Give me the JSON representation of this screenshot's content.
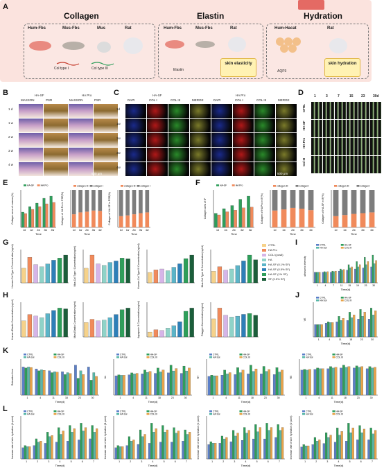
{
  "panel_letters": [
    "A",
    "B",
    "C",
    "D",
    "E",
    "F",
    "G",
    "H",
    "I",
    "J",
    "K",
    "L"
  ],
  "panelA": {
    "collagen": {
      "title": "Collagen",
      "items": [
        "Hum-Fbs",
        "Mus-Fbs",
        "Mus",
        "Rat"
      ],
      "outputs": [
        "Col type I",
        "Col type III"
      ]
    },
    "elastin": {
      "title": "Elastin",
      "items": [
        "Hum-Fbs",
        "Mus-Fbs",
        "Rat"
      ],
      "outputs": [
        "Elastin",
        "skin elasticity"
      ]
    },
    "hydration": {
      "title": "Hydration",
      "items": [
        "Hum-Hacat",
        "Rat"
      ],
      "outputs": [
        "AQP3",
        "skin hydration"
      ]
    }
  },
  "panelB": {
    "groups": [
      "HA-SF",
      "HA Pro"
    ],
    "stains": [
      "MASSON",
      "PSR"
    ],
    "rows": [
      "1 d",
      "1 w",
      "2 w",
      "3 w",
      "4 w"
    ],
    "scale": "500 μm"
  },
  "panelC": {
    "groups": [
      "HA-SF",
      "HA Pro"
    ],
    "channels": [
      "DAPI",
      "COL I",
      "COL III",
      "MERGE"
    ],
    "rows": [
      "1d",
      "1w",
      "2w",
      "3w",
      "4w"
    ],
    "scale": "500 μm"
  },
  "panelD": {
    "columns": [
      "1",
      "3",
      "7",
      "15",
      "23",
      "30d"
    ],
    "rows": [
      "CTRL",
      "HA-SF",
      "HA Pro",
      "Col III"
    ]
  },
  "legends": {
    "two": [
      "HA-SF",
      "HA Pro"
    ],
    "collagen_ratio": [
      "collagen III",
      "collagen I"
    ],
    "groups8": [
      "CTRL",
      "HA Pro",
      "COL I(pos8)",
      "HA",
      "HA-SF (0.1% SF)",
      "HA-SF (0.5% SF)",
      "HA-SF (1% SF)",
      "SF (0.5% SF)"
    ],
    "groups4": [
      "CTRL",
      "HA-SF",
      "HA Sol",
      "COL III"
    ]
  },
  "chart_data": [
    {
      "panel": "E1",
      "type": "bar",
      "ylabel": "Collagen area of masson(%)",
      "xlabel": "Time",
      "categories": [
        "1d",
        "1w",
        "2w",
        "3w",
        "4w"
      ],
      "series": [
        {
          "name": "HA-SF",
          "values": [
            22,
            30,
            35,
            42,
            45
          ]
        },
        {
          "name": "HA Pro",
          "values": [
            20,
            26,
            30,
            34,
            36
          ]
        }
      ]
    },
    {
      "panel": "E2",
      "type": "bar",
      "ylabel": "Collagen of HA Pro in PSR(%)",
      "xlabel": "Time",
      "categories": [
        "1d",
        "1w",
        "2w",
        "3w",
        "4w"
      ],
      "series": [
        {
          "name": "collagen III",
          "values": [
            35,
            40,
            42,
            45,
            44
          ]
        },
        {
          "name": "collagen I",
          "values": [
            65,
            60,
            58,
            55,
            56
          ]
        }
      ]
    },
    {
      "panel": "E3",
      "type": "bar",
      "ylabel": "Collagen of HA-SF in PSR(%)",
      "xlabel": "Time",
      "categories": [
        "1d",
        "1w",
        "2w",
        "3w",
        "4w"
      ],
      "series": [
        {
          "name": "collagen III",
          "values": [
            30,
            32,
            35,
            38,
            40
          ]
        },
        {
          "name": "collagen I",
          "values": [
            70,
            68,
            65,
            62,
            60
          ]
        }
      ]
    },
    {
      "panel": "F1",
      "type": "bar",
      "ylabel": "Collagen area of IF",
      "xlabel": "Time",
      "categories": [
        "1d",
        "1w",
        "2w",
        "3w",
        "4w"
      ],
      "series": [
        {
          "name": "HA-SF",
          "values": [
            18,
            24,
            28,
            36,
            40
          ]
        },
        {
          "name": "HA Pro",
          "values": [
            16,
            20,
            22,
            25,
            26
          ]
        }
      ]
    },
    {
      "panel": "F2",
      "type": "bar",
      "ylabel": "Collagen of HA Pro in IF(%)",
      "xlabel": "Time",
      "categories": [
        "1d",
        "1w",
        "2w",
        "3w",
        "4w"
      ],
      "series": [
        {
          "name": "collagen III",
          "values": [
            45,
            48,
            52,
            50,
            46
          ]
        },
        {
          "name": "collagen I",
          "values": [
            55,
            52,
            48,
            50,
            54
          ]
        }
      ]
    },
    {
      "panel": "F3",
      "type": "bar",
      "ylabel": "Collagen of HA-SF in IF(%)",
      "xlabel": "Time",
      "categories": [
        "1d",
        "1w",
        "2w",
        "3w",
        "4w"
      ],
      "series": [
        {
          "name": "collagen III",
          "values": [
            30,
            33,
            36,
            38,
            40
          ]
        },
        {
          "name": "collagen I",
          "values": [
            70,
            67,
            64,
            62,
            60
          ]
        }
      ]
    },
    {
      "panel": "G1",
      "type": "bar",
      "ylabel": "Human-Col Type I Concentration(ng/ml)",
      "values": [
        2.0,
        3.5,
        2.5,
        2.2,
        2.6,
        3.1,
        3.4,
        3.8
      ]
    },
    {
      "panel": "G2",
      "type": "bar",
      "ylabel": "Mus-Col Type I Concentration(ng/ml)",
      "values": [
        2.0,
        3.8,
        2.6,
        2.4,
        2.8,
        3.0,
        3.4,
        3.3
      ]
    },
    {
      "panel": "G3",
      "type": "bar",
      "ylabel": "Human-Col Type III Concentration(ng/ml)",
      "values": [
        1.2,
        1.5,
        1.6,
        1.4,
        1.8,
        2.2,
        2.8,
        3.2
      ]
    },
    {
      "panel": "G4",
      "type": "bar",
      "ylabel": "Mus-Col Type III Concentration(ng/ml)",
      "values": [
        1.0,
        1.4,
        1.1,
        1.2,
        1.5,
        1.9,
        2.4,
        2.0
      ]
    },
    {
      "panel": "H1",
      "type": "bar",
      "ylabel": "Human-Elastin Concentration(ng/ml)",
      "values": [
        2.0,
        2.8,
        2.6,
        2.4,
        2.9,
        3.3,
        3.6,
        3.5
      ]
    },
    {
      "panel": "H2",
      "type": "bar",
      "ylabel": "Mus-Elastic Concentration(ng/ml)",
      "values": [
        1.8,
        2.2,
        2.0,
        2.1,
        2.4,
        2.8,
        3.4,
        3.6
      ]
    },
    {
      "panel": "H3",
      "type": "bar",
      "ylabel": "Aquaporin 3 Concentration(ng/ml)",
      "values": [
        0.6,
        0.9,
        0.8,
        1.1,
        1.4,
        1.9,
        3.2,
        3.6
      ]
    },
    {
      "panel": "H4",
      "type": "bar",
      "ylabel": "Filaggrin Concentration(ng/ml)",
      "values": [
        2.0,
        3.2,
        2.4,
        2.2,
        2.3,
        2.5,
        2.6,
        2.4
      ]
    },
    {
      "panel": "I",
      "type": "bar",
      "ylabel": "ultrasonic intensity",
      "xlabel": "Time(d)",
      "categories": [
        "1",
        "4",
        "7",
        "11",
        "15",
        "19",
        "23",
        "30"
      ],
      "series": [
        {
          "name": "CTRL",
          "values": [
            20,
            20,
            20,
            22,
            24,
            26,
            28,
            30
          ]
        },
        {
          "name": "HA-SF",
          "values": [
            20,
            21,
            22,
            26,
            34,
            40,
            48,
            52
          ]
        },
        {
          "name": "HA Sol",
          "values": [
            20,
            20,
            21,
            24,
            28,
            30,
            34,
            36
          ]
        },
        {
          "name": "COL III",
          "values": [
            20,
            21,
            22,
            25,
            30,
            34,
            40,
            42
          ]
        }
      ]
    },
    {
      "panel": "J",
      "type": "bar",
      "ylabel": "VE",
      "xlabel": "Time(d)",
      "categories": [
        "1",
        "4",
        "11",
        "18",
        "23",
        "30"
      ],
      "series": [
        {
          "name": "CTRL",
          "values": [
            18,
            20,
            22,
            24,
            26,
            26
          ]
        },
        {
          "name": "HA-SF",
          "values": [
            18,
            22,
            30,
            36,
            40,
            42
          ]
        },
        {
          "name": "HA Sol",
          "values": [
            18,
            21,
            24,
            28,
            30,
            32
          ]
        },
        {
          "name": "COL III",
          "values": [
            18,
            21,
            27,
            32,
            36,
            38
          ]
        }
      ]
    },
    {
      "panel": "K1",
      "type": "bar",
      "ylabel": "Retraction time",
      "xlabel": "Time(d)",
      "categories": [
        "1",
        "4",
        "11",
        "18",
        "23",
        "30"
      ],
      "series": [
        {
          "name": "CTRL",
          "values": [
            300,
            280,
            260,
            250,
            320,
            300
          ]
        },
        {
          "name": "HA-SF",
          "values": [
            290,
            260,
            240,
            220,
            180,
            160
          ]
        },
        {
          "name": "HA Sol",
          "values": [
            300,
            270,
            250,
            240,
            260,
            240
          ]
        },
        {
          "name": "COL III",
          "values": [
            295,
            265,
            245,
            230,
            220,
            200
          ]
        }
      ]
    },
    {
      "panel": "K2",
      "type": "bar",
      "ylabel": "Uc",
      "xlabel": "Time(d)",
      "categories": [
        "1",
        "4",
        "11",
        "18",
        "23",
        "30"
      ],
      "series": [
        {
          "name": "CTRL",
          "values": [
            0.4,
            0.42,
            0.44,
            0.45,
            0.46,
            0.45
          ]
        },
        {
          "name": "HA-SF",
          "values": [
            0.42,
            0.46,
            0.52,
            0.56,
            0.62,
            0.6
          ]
        },
        {
          "name": "HA Sol",
          "values": [
            0.41,
            0.44,
            0.47,
            0.48,
            0.5,
            0.5
          ]
        },
        {
          "name": "COL III",
          "values": [
            0.41,
            0.45,
            0.49,
            0.52,
            0.55,
            0.56
          ]
        }
      ]
    },
    {
      "panel": "K3",
      "type": "bar",
      "ylabel": "R7",
      "xlabel": "Time(d)",
      "categories": [
        "1",
        "4",
        "11",
        "18",
        "23",
        "30"
      ],
      "series": [
        {
          "name": "CTRL",
          "values": [
            0.3,
            0.32,
            0.33,
            0.34,
            0.34,
            0.33
          ]
        },
        {
          "name": "HA-SF",
          "values": [
            0.32,
            0.4,
            0.44,
            0.48,
            0.46,
            0.44
          ]
        },
        {
          "name": "HA Sol",
          "values": [
            0.31,
            0.34,
            0.36,
            0.38,
            0.38,
            0.37
          ]
        },
        {
          "name": "COL III",
          "values": [
            0.31,
            0.36,
            0.4,
            0.42,
            0.41,
            0.4
          ]
        }
      ]
    },
    {
      "panel": "K4",
      "type": "bar",
      "ylabel": "R5",
      "xlabel": "Time(d)",
      "categories": [
        "1",
        "4",
        "11",
        "18",
        "23",
        "30"
      ],
      "series": [
        {
          "name": "CTRL",
          "values": [
            0.35,
            0.36,
            0.37,
            0.38,
            0.38,
            0.37
          ]
        },
        {
          "name": "HA-SF",
          "values": [
            0.36,
            0.38,
            0.4,
            0.42,
            0.41,
            0.4
          ]
        },
        {
          "name": "HA Sol",
          "values": [
            0.35,
            0.37,
            0.38,
            0.39,
            0.39,
            0.38
          ]
        },
        {
          "name": "COL III",
          "values": [
            0.36,
            0.37,
            0.39,
            0.4,
            0.4,
            0.39
          ]
        }
      ]
    },
    {
      "panel": "L1",
      "type": "bar",
      "ylabel": "Increase rate of skin hydration (A point)",
      "xlabel": "Time(d)",
      "categories": [
        "1",
        "2",
        "3",
        "4",
        "5",
        "6",
        "7"
      ],
      "series": [
        {
          "name": "CTRL",
          "values": [
            10,
            12,
            14,
            15,
            16,
            17,
            18
          ]
        },
        {
          "name": "HA-SF",
          "values": [
            12,
            18,
            24,
            28,
            30,
            32,
            30
          ]
        },
        {
          "name": "HA Sol",
          "values": [
            11,
            15,
            20,
            22,
            24,
            25,
            24
          ]
        },
        {
          "name": "COL III",
          "values": [
            11,
            16,
            21,
            25,
            27,
            28,
            27
          ]
        }
      ]
    },
    {
      "panel": "L2",
      "type": "bar",
      "ylabel": "Increase rate of skin hydration (B point)",
      "xlabel": "Time(d)",
      "categories": [
        "1",
        "2",
        "3",
        "4",
        "5",
        "6",
        "7"
      ],
      "series": [
        {
          "name": "CTRL",
          "values": [
            10,
            12,
            13,
            14,
            15,
            15,
            16
          ]
        },
        {
          "name": "HA-SF",
          "values": [
            12,
            20,
            26,
            32,
            30,
            28,
            26
          ]
        },
        {
          "name": "HA Sol",
          "values": [
            11,
            16,
            20,
            24,
            24,
            23,
            22
          ]
        },
        {
          "name": "COL III",
          "values": [
            11,
            17,
            22,
            27,
            26,
            25,
            24
          ]
        }
      ]
    },
    {
      "panel": "L3",
      "type": "bar",
      "ylabel": "Increase rate of skin hydration (C point)",
      "xlabel": "Time(d)",
      "categories": [
        "1",
        "2",
        "3",
        "4",
        "5",
        "6",
        "7"
      ],
      "series": [
        {
          "name": "CTRL",
          "values": [
            10,
            11,
            12,
            13,
            14,
            14,
            15
          ]
        },
        {
          "name": "HA-SF",
          "values": [
            12,
            16,
            20,
            22,
            24,
            25,
            24
          ]
        },
        {
          "name": "HA Sol",
          "values": [
            11,
            14,
            16,
            18,
            19,
            20,
            20
          ]
        },
        {
          "name": "COL III",
          "values": [
            11,
            15,
            18,
            20,
            22,
            22,
            22
          ]
        }
      ]
    },
    {
      "panel": "L4",
      "type": "bar",
      "ylabel": "Increase rate of skin hydration (D point)",
      "xlabel": "Time(d)",
      "categories": [
        "1",
        "2",
        "3",
        "4",
        "5",
        "6",
        "7"
      ],
      "series": [
        {
          "name": "CTRL",
          "values": [
            10,
            12,
            13,
            14,
            15,
            16,
            16
          ]
        },
        {
          "name": "HA-SF",
          "values": [
            12,
            18,
            22,
            26,
            30,
            28,
            26
          ]
        },
        {
          "name": "HA Sol",
          "values": [
            11,
            15,
            18,
            20,
            22,
            22,
            21
          ]
        },
        {
          "name": "COL III",
          "values": [
            11,
            16,
            20,
            23,
            26,
            25,
            24
          ]
        }
      ]
    }
  ],
  "colors": {
    "HA-SF": "#2e9e5a",
    "HA Pro": "#f08a5b",
    "collagen III": "#f08a5b",
    "collagen I": "#7d7d7d",
    "CTRL": "#5b7fc8",
    "HA Sol": "#58b8a8",
    "COL III": "#e8a44a",
    "elastin_bg": "#fbe3de",
    "groups8": [
      "#f6d28a",
      "#f08a5b",
      "#d6b5e8",
      "#8fd3c8",
      "#5ab4c8",
      "#2e7fb8",
      "#2e9e5a",
      "#1b5e3a"
    ]
  }
}
